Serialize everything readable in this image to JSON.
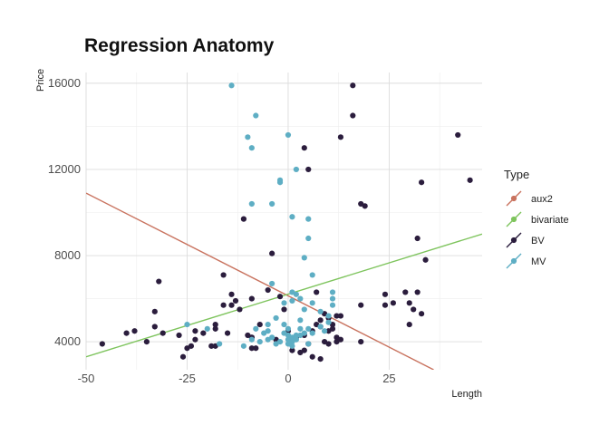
{
  "chart_data": {
    "type": "scatter",
    "title": "Regression Anatomy",
    "xlabel": "Length",
    "ylabel": "Price",
    "xlim": [
      -50,
      48
    ],
    "ylim": [
      2700,
      16500
    ],
    "x_ticks": [
      -50,
      -25,
      0,
      25
    ],
    "y_ticks": [
      4000,
      8000,
      12000,
      16000
    ],
    "x_tick_labels": [
      "-50",
      "-25",
      "0",
      "25"
    ],
    "y_tick_labels": [
      "4000",
      "8000",
      "12000",
      "16000"
    ],
    "grid": true,
    "legend": {
      "title": "Type",
      "position": "right",
      "entries": [
        {
          "label": "aux2",
          "color": "#c9735f"
        },
        {
          "label": "bivariate",
          "color": "#7ec45d"
        },
        {
          "label": "BV",
          "color": "#2b1d3d"
        },
        {
          "label": "MV",
          "color": "#5eaec4"
        }
      ]
    },
    "lines": [
      {
        "name": "aux2",
        "color": "#c9735f",
        "points": [
          [
            -50,
            10900
          ],
          [
            36,
            2700
          ]
        ]
      },
      {
        "name": "bivariate",
        "color": "#7ec45d",
        "points": [
          [
            -50,
            3300
          ],
          [
            48,
            9000
          ]
        ]
      }
    ],
    "series": [
      {
        "name": "BV",
        "color": "#2b1d3d",
        "points": [
          [
            -46,
            3900
          ],
          [
            -40,
            4400
          ],
          [
            -38,
            4500
          ],
          [
            -35,
            4000
          ],
          [
            -33,
            4700
          ],
          [
            -33,
            5400
          ],
          [
            -32,
            6800
          ],
          [
            -31,
            4400
          ],
          [
            -27,
            4300
          ],
          [
            -26,
            3300
          ],
          [
            -25,
            3700
          ],
          [
            -24,
            3800
          ],
          [
            -23,
            4500
          ],
          [
            -23,
            4100
          ],
          [
            -21,
            4400
          ],
          [
            -19,
            3800
          ],
          [
            -18,
            3800
          ],
          [
            -18,
            4600
          ],
          [
            -18,
            4800
          ],
          [
            -16,
            7100
          ],
          [
            -16,
            5700
          ],
          [
            -15,
            4400
          ],
          [
            -14,
            5700
          ],
          [
            -14,
            6200
          ],
          [
            -13,
            5900
          ],
          [
            -12,
            5500
          ],
          [
            -11,
            9700
          ],
          [
            -10,
            4300
          ],
          [
            -9,
            4200
          ],
          [
            -9,
            4200
          ],
          [
            -9,
            3700
          ],
          [
            -9,
            6000
          ],
          [
            -8,
            3700
          ],
          [
            -7,
            4800
          ],
          [
            -5,
            6400
          ],
          [
            -4,
            8100
          ],
          [
            -3,
            4100
          ],
          [
            -2,
            6100
          ],
          [
            -1,
            5500
          ],
          [
            0,
            4500
          ],
          [
            1,
            4100
          ],
          [
            1,
            3600
          ],
          [
            2,
            4200
          ],
          [
            3,
            3500
          ],
          [
            4,
            3600
          ],
          [
            4,
            4300
          ],
          [
            4,
            13000
          ],
          [
            5,
            12000
          ],
          [
            5,
            3900
          ],
          [
            6,
            3300
          ],
          [
            6,
            4500
          ],
          [
            7,
            4800
          ],
          [
            7,
            6300
          ],
          [
            8,
            4700
          ],
          [
            8,
            3200
          ],
          [
            8,
            5000
          ],
          [
            9,
            4000
          ],
          [
            9,
            5300
          ],
          [
            10,
            4500
          ],
          [
            10,
            3900
          ],
          [
            10,
            5100
          ],
          [
            11,
            4800
          ],
          [
            11,
            4600
          ],
          [
            12,
            5200
          ],
          [
            12,
            4200
          ],
          [
            12,
            4000
          ],
          [
            13,
            4100
          ],
          [
            13,
            13500
          ],
          [
            13,
            5200
          ],
          [
            16,
            15900
          ],
          [
            16,
            14500
          ],
          [
            18,
            10400
          ],
          [
            18,
            5700
          ],
          [
            18,
            4000
          ],
          [
            19,
            10300
          ],
          [
            24,
            6200
          ],
          [
            24,
            5700
          ],
          [
            26,
            5800
          ],
          [
            29,
            6300
          ],
          [
            30,
            5800
          ],
          [
            30,
            4800
          ],
          [
            31,
            5500
          ],
          [
            32,
            8800
          ],
          [
            32,
            6300
          ],
          [
            33,
            5300
          ],
          [
            33,
            11400
          ],
          [
            34,
            7800
          ],
          [
            42,
            13600
          ],
          [
            45,
            11500
          ]
        ]
      },
      {
        "name": "MV",
        "color": "#5eaec4",
        "points": [
          [
            -25,
            4800
          ],
          [
            -20,
            4600
          ],
          [
            -17,
            3900
          ],
          [
            -14,
            15900
          ],
          [
            -11,
            3800
          ],
          [
            -10,
            13500
          ],
          [
            -9,
            13000
          ],
          [
            -9,
            10400
          ],
          [
            -9,
            4100
          ],
          [
            -8,
            14500
          ],
          [
            -8,
            4600
          ],
          [
            -7,
            4000
          ],
          [
            -6,
            4400
          ],
          [
            -5,
            4500
          ],
          [
            -5,
            4800
          ],
          [
            -5,
            4100
          ],
          [
            -4,
            10400
          ],
          [
            -4,
            6700
          ],
          [
            -4,
            4200
          ],
          [
            -3,
            3900
          ],
          [
            -3,
            5100
          ],
          [
            -2,
            11400
          ],
          [
            -2,
            11500
          ],
          [
            -2,
            4000
          ],
          [
            -1,
            4400
          ],
          [
            -1,
            5800
          ],
          [
            -1,
            4800
          ],
          [
            0,
            13600
          ],
          [
            0,
            4600
          ],
          [
            0,
            4300
          ],
          [
            0,
            4100
          ],
          [
            0,
            3900
          ],
          [
            1,
            4200
          ],
          [
            1,
            6300
          ],
          [
            1,
            9800
          ],
          [
            1,
            5900
          ],
          [
            1,
            4000
          ],
          [
            1,
            3800
          ],
          [
            2,
            12000
          ],
          [
            2,
            6200
          ],
          [
            2,
            4100
          ],
          [
            2,
            4300
          ],
          [
            3,
            6000
          ],
          [
            3,
            5000
          ],
          [
            3,
            4600
          ],
          [
            3,
            4300
          ],
          [
            4,
            7900
          ],
          [
            4,
            5500
          ],
          [
            4,
            4400
          ],
          [
            5,
            9700
          ],
          [
            5,
            8800
          ],
          [
            5,
            4600
          ],
          [
            5,
            3900
          ],
          [
            6,
            7100
          ],
          [
            6,
            5800
          ],
          [
            6,
            4400
          ],
          [
            8,
            5400
          ],
          [
            8,
            4700
          ],
          [
            9,
            4500
          ],
          [
            10,
            5200
          ],
          [
            10,
            4900
          ],
          [
            11,
            6300
          ],
          [
            11,
            6000
          ],
          [
            11,
            5700
          ]
        ]
      }
    ]
  }
}
